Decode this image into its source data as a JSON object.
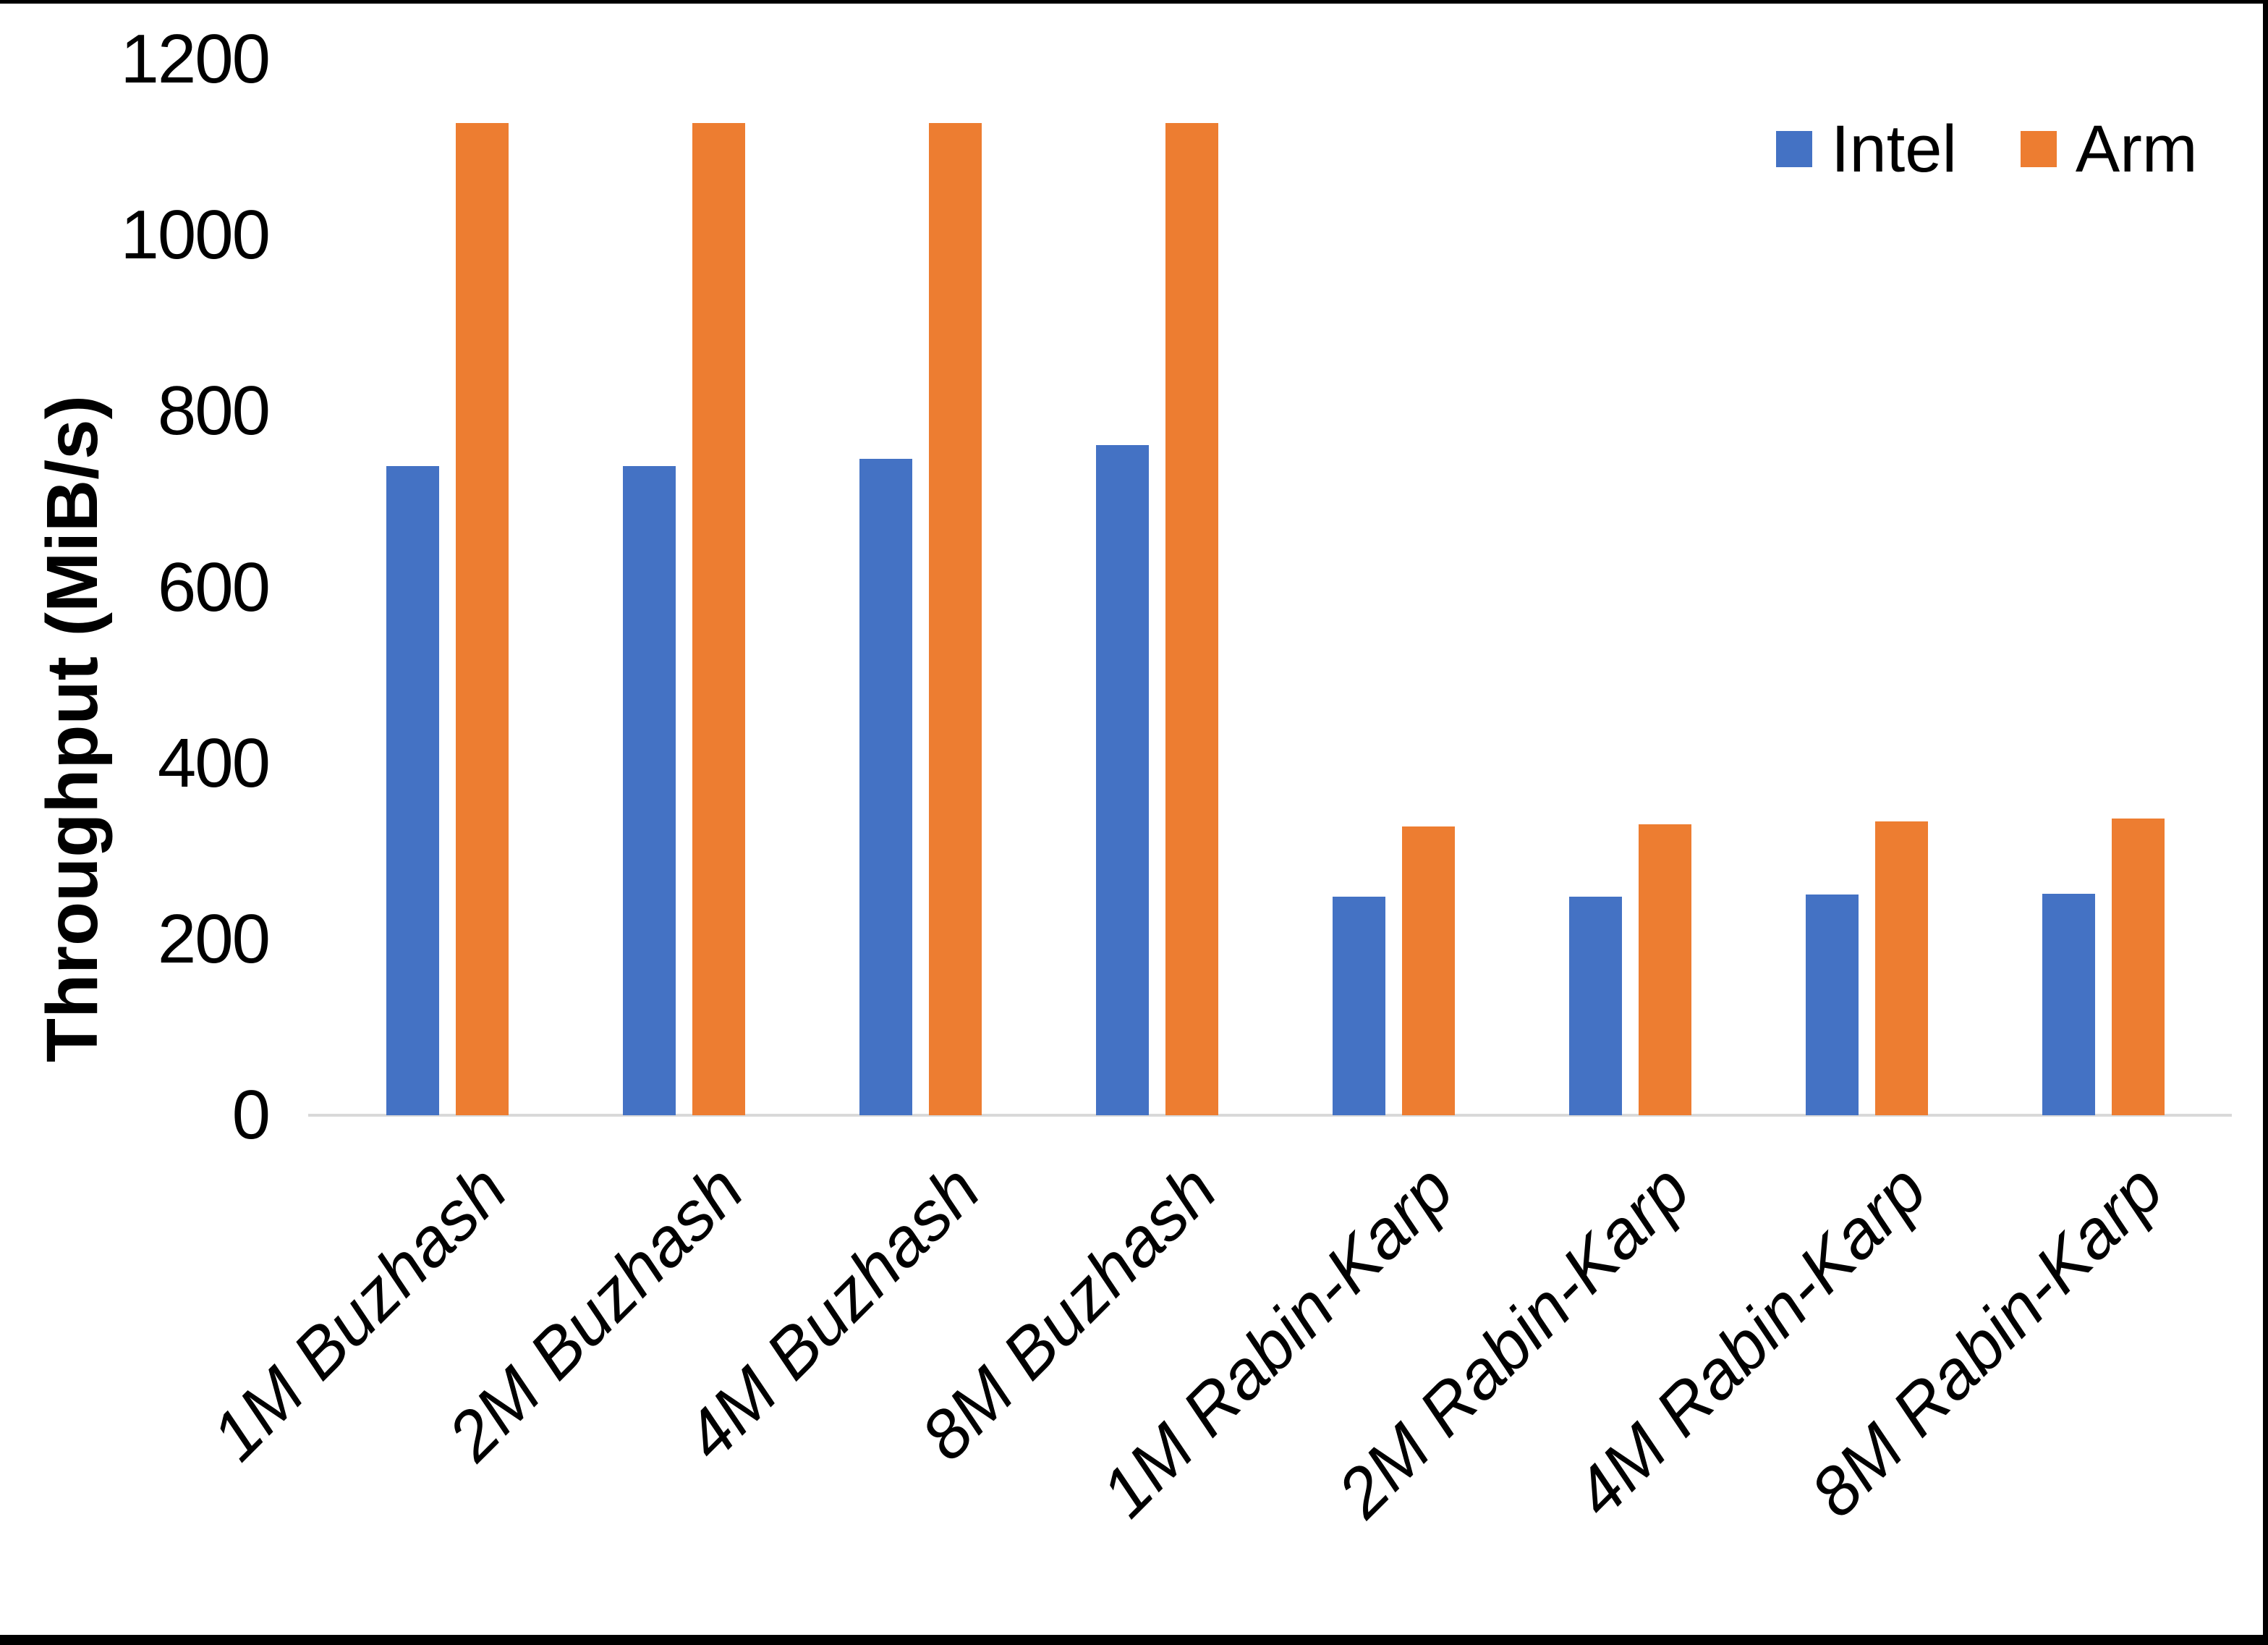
{
  "chart_data": {
    "type": "bar",
    "title": "",
    "xlabel": "",
    "ylabel": "Throughput (MiB/s)",
    "ylim": [
      0,
      1200
    ],
    "yticks": [
      0,
      200,
      400,
      600,
      800,
      1000,
      1200
    ],
    "grid": false,
    "legend_position": "top-right",
    "axis_line_color": "#D9D9D9",
    "background_color": "#FFFFFF",
    "frame_color": "#000000",
    "categories": [
      "1M Buzhash",
      "2M Buzhash",
      "4M Buzhash",
      "8M Buzhash",
      "1M Rabin-Karp",
      "2M Rabin-Karp",
      "4M Rabin-Karp",
      "8M Rabin-Karp"
    ],
    "series": [
      {
        "name": "Intel",
        "color": "#4472C4",
        "values": [
          738,
          738,
          746,
          762,
          248,
          248,
          251,
          252
        ]
      },
      {
        "name": "Arm",
        "color": "#ED7D31",
        "values": [
          1128,
          1128,
          1128,
          1128,
          328,
          331,
          334,
          337
        ]
      }
    ]
  },
  "legend": {
    "items": [
      {
        "label": "Intel",
        "color": "#4472C4"
      },
      {
        "label": "Arm",
        "color": "#ED7D31"
      }
    ]
  }
}
